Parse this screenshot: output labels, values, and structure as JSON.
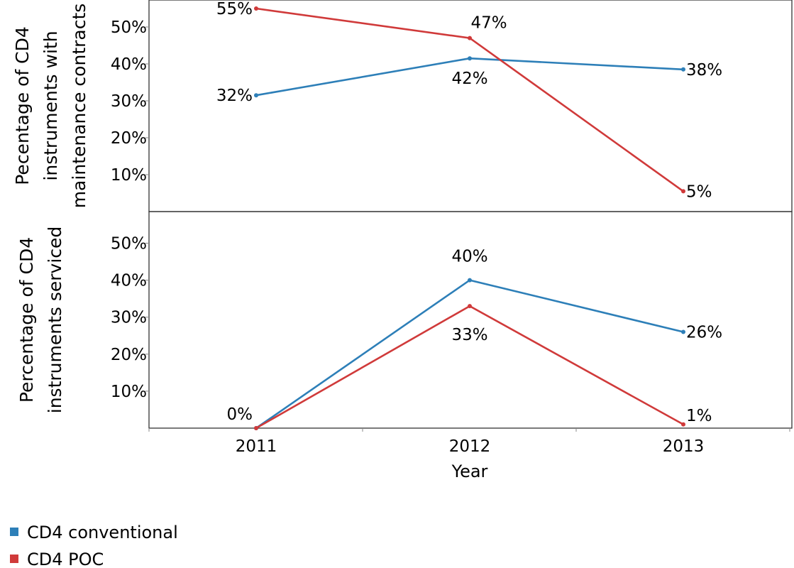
{
  "chart_data": [
    {
      "type": "line",
      "ylabel": "Pecentage of CD4 instruments with maintenance contracts",
      "ylabel_lines": [
        "Pecentage of CD4",
        "instruments with",
        "maintenance contracts"
      ],
      "x": [
        "2011",
        "2012",
        "2013"
      ],
      "ylim": [
        0,
        57
      ],
      "yticks": [
        "10%",
        "20%",
        "30%",
        "40%",
        "50%"
      ],
      "ytick_values": [
        10,
        20,
        30,
        40,
        50
      ],
      "series": [
        {
          "name": "CD4 conventional",
          "color": "#2d7fb8",
          "values": [
            31.5,
            41.5,
            38.5
          ],
          "labels": [
            "32%",
            "42%",
            "38%"
          ]
        },
        {
          "name": "CD4 POC",
          "color": "#d03a3a",
          "values": [
            55,
            47,
            5.5
          ],
          "labels": [
            "55%",
            "47%",
            "5%"
          ]
        }
      ]
    },
    {
      "type": "line",
      "ylabel": "Percentage of CD4 instruments serviced",
      "ylabel_lines": [
        "Percentage of CD4",
        "instruments serviced"
      ],
      "x": [
        "2011",
        "2012",
        "2013"
      ],
      "ylim": [
        0,
        57
      ],
      "yticks": [
        "10%",
        "20%",
        "30%",
        "40%",
        "50%"
      ],
      "ytick_values": [
        10,
        20,
        30,
        40,
        50
      ],
      "xlabel": "Year",
      "series": [
        {
          "name": "CD4 conventional",
          "color": "#2d7fb8",
          "values": [
            0,
            40,
            26
          ],
          "labels": [
            "0%",
            "40%",
            "26%"
          ]
        },
        {
          "name": "CD4 POC",
          "color": "#d03a3a",
          "values": [
            0,
            33,
            1
          ],
          "labels": [
            "",
            "33%",
            "1%"
          ]
        }
      ]
    }
  ],
  "legend": {
    "placement": "bottom-left",
    "items": [
      {
        "label": "CD4 conventional",
        "color": "#2d7fb8"
      },
      {
        "label": "CD4 POC",
        "color": "#d03a3a"
      }
    ]
  }
}
